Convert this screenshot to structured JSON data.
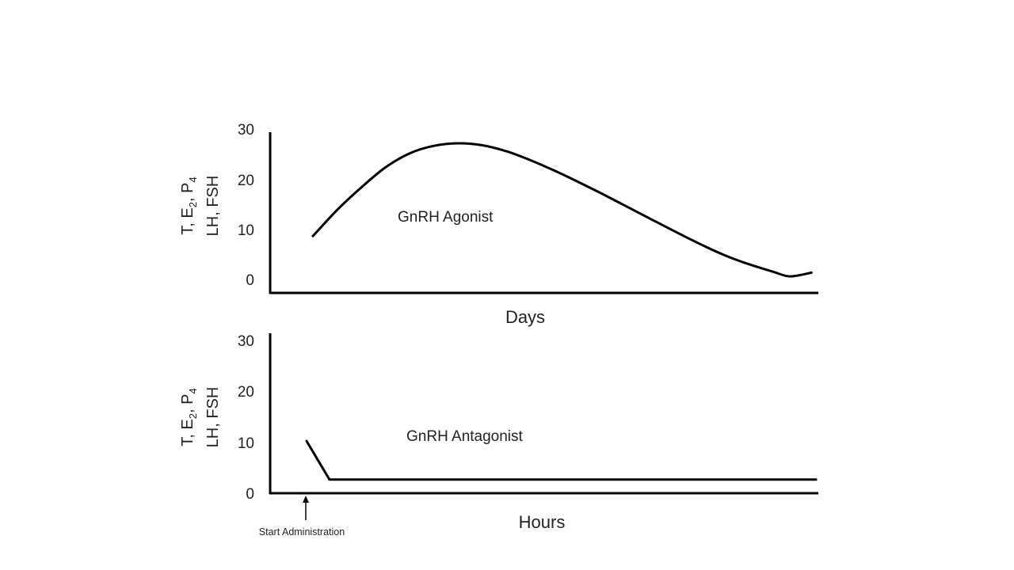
{
  "chart_data": [
    {
      "type": "line",
      "ylabel_line1": [
        "T, E",
        "2",
        ", P",
        "4"
      ],
      "ylabel_line2": "LH, FSH",
      "xlabel": "Days",
      "yticks": [
        "0",
        "10",
        "20",
        "30"
      ],
      "ylim": [
        0,
        30
      ],
      "annotation": "GnRH Agonist",
      "series": [
        {
          "points": [
            [
              0.0,
              8.5
            ],
            [
              0.05,
              13.7
            ],
            [
              0.1,
              18.2
            ],
            [
              0.15,
              22.2
            ],
            [
              0.2,
              25.0
            ],
            [
              0.25,
              26.5
            ],
            [
              0.3,
              27.0
            ],
            [
              0.35,
              26.6
            ],
            [
              0.4,
              25.4
            ],
            [
              0.45,
              23.6
            ],
            [
              0.5,
              21.5
            ],
            [
              0.55,
              19.2
            ],
            [
              0.6,
              16.8
            ],
            [
              0.65,
              14.3
            ],
            [
              0.7,
              11.8
            ],
            [
              0.75,
              9.3
            ],
            [
              0.8,
              6.9
            ],
            [
              0.85,
              4.7
            ],
            [
              0.9,
              2.9
            ],
            [
              0.95,
              1.4
            ],
            [
              0.98,
              0.5
            ],
            [
              1.0,
              0.6
            ],
            [
              1.03,
              1.2
            ]
          ]
        }
      ]
    },
    {
      "type": "line",
      "ylabel_line1": [
        "T, E",
        "2",
        ", P",
        "4"
      ],
      "ylabel_line2": "LH, FSH",
      "xlabel": "Hours",
      "yticks": [
        "0",
        "10",
        "20",
        "30"
      ],
      "ylim": [
        0,
        30
      ],
      "annotation": "GnRH Antagonist",
      "marker_label": "Start Administration",
      "series": [
        {
          "points": [
            [
              0.0,
              10.3
            ],
            [
              0.045,
              2.7
            ],
            [
              1.0,
              2.7
            ]
          ]
        }
      ]
    }
  ]
}
